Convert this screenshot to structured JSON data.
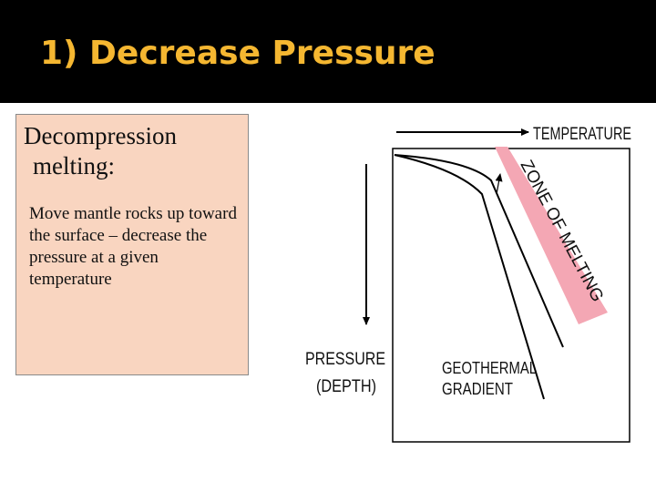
{
  "slide": {
    "title": "1) Decrease Pressure"
  },
  "text_box": {
    "heading": "Decompression melting:",
    "body": "Move mantle rocks up toward the surface – decrease the pressure at a given temperature"
  },
  "diagram": {
    "temperature_label": "TEMPERATURE",
    "pressure_label": "PRESSURE",
    "depth_label": "(DEPTH)",
    "zone_label": "ZONE OF MELTING",
    "geotherm_label_1": "GEOTHERMAL",
    "geotherm_label_2": "GRADIENT",
    "zone_color": "#f4a7b4"
  },
  "colors": {
    "title": "#f5b731",
    "title_bar": "#000000",
    "text_box": "#f9d5c0"
  }
}
